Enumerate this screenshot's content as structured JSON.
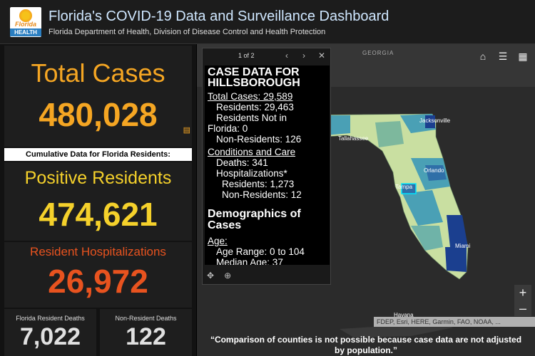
{
  "header": {
    "logo_text_top": "Florida",
    "logo_text_bottom": "HEALTH",
    "title": "Florida's COVID-19 Data and Surveillance Dashboard",
    "subtitle": "Florida Department of Health, Division of Disease Control and Health Protection"
  },
  "left": {
    "total_cases_label": "Total Cases",
    "total_cases_value": "480,028",
    "cumulative_label": "Cumulative Data for Florida Residents:",
    "positive_label": "Positive Residents",
    "positive_value": "474,621",
    "hosp_label": "Resident Hospitalizations",
    "hosp_value": "26,972",
    "deaths_label": "Florida Resident Deaths",
    "deaths_value": "7,022",
    "nonres_deaths_label": "Non-Resident Deaths",
    "nonres_deaths_value": "122"
  },
  "popup": {
    "pager": "1 of 2",
    "prev_icon": "‹",
    "next_icon": "›",
    "close_icon": "✕",
    "heading_line1": "CASE DATA FOR",
    "heading_line2": "HILLSBOROUGH",
    "total_cases": "Total Cases: 29,589",
    "residents": "Residents: 29,463",
    "not_in_1": "Residents Not in",
    "not_in_2": "Florida: 0",
    "non_residents": "Non-Residents: 126",
    "conditions": "Conditions and Care",
    "deaths": "Deaths: 341",
    "hospitalizations": "Hospitalizations*",
    "hosp_residents": "Residents: 1,273",
    "hosp_nonres": "Non-Residents: 12",
    "demo_line1": "Demographics of",
    "demo_line2": "Cases",
    "age": "Age:",
    "age_range": "Age Range: 0 to 104",
    "median_age": "Median Age: 37"
  },
  "map": {
    "label_georgia": "GEORGIA",
    "label_tallahassee": "Tallahassee",
    "label_jacksonville": "Jacksonville",
    "label_orlando": "Orlando",
    "label_tampa": "Tampa",
    "label_miami": "Miami",
    "label_havana": "Havana",
    "attribution": "FDEP, Esri, HERE, Garmin, FAO, NOAA, ...",
    "zoom_in": "+",
    "zoom_out": "–",
    "disclaimer": "“Comparison of counties is not possible because case data are not adjusted by population.”"
  },
  "colors": {
    "total": "#f5a623",
    "positive": "#f5d12b",
    "hosp": "#e8531f",
    "map_light": "#c9dfa1",
    "map_mid": "#4aa0b5",
    "map_dark": "#1b3f8f",
    "highlight": "#00e5ff"
  }
}
